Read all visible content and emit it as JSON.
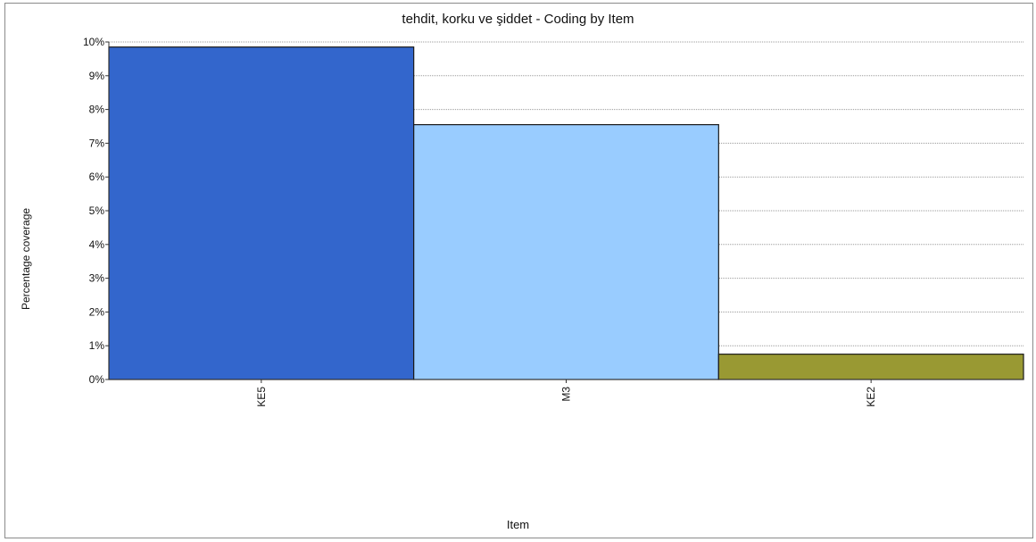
{
  "chart_data": {
    "type": "bar",
    "title": "tehdit, korku ve şiddet - Coding by Item",
    "xlabel": "Item",
    "ylabel": "Percentage coverage",
    "categories": [
      "KE5",
      "M3",
      "KE2"
    ],
    "values": [
      9.85,
      7.55,
      0.75
    ],
    "colors": [
      "#3366cc",
      "#99ccff",
      "#999933"
    ],
    "ylim": [
      0,
      10
    ],
    "yticks": [
      0,
      1,
      2,
      3,
      4,
      5,
      6,
      7,
      8,
      9,
      10
    ],
    "ytick_labels": [
      "0%",
      "1%",
      "2%",
      "3%",
      "4%",
      "5%",
      "6%",
      "7%",
      "8%",
      "9%",
      "10%"
    ],
    "grid": true,
    "legend": "none"
  }
}
